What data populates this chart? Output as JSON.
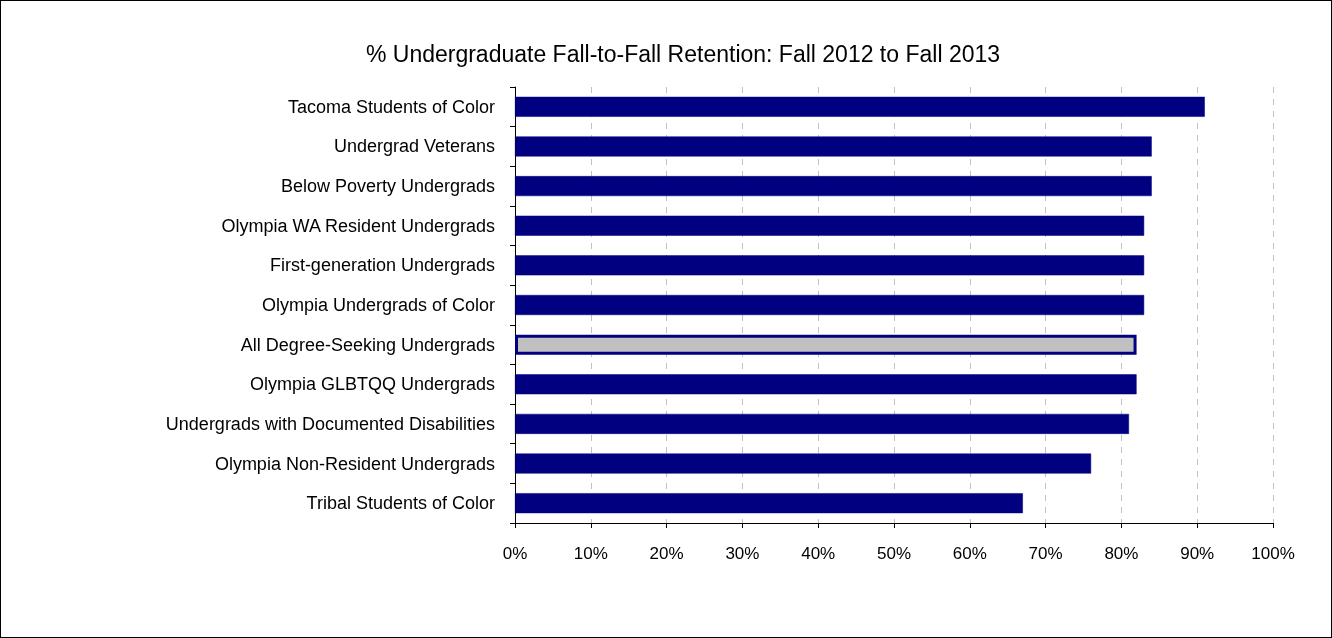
{
  "chart_data": {
    "type": "bar",
    "orientation": "horizontal",
    "title": "% Undergraduate Fall-to-Fall Retention: Fall 2012 to Fall 2013",
    "categories": [
      "Tacoma Students of Color",
      "Undergrad Veterans",
      "Below Poverty Undergrads",
      "Olympia WA Resident Undergrads",
      "First-generation Undergrads",
      "Olympia Undergrads of Color",
      "All Degree-Seeking Undergrads",
      "Olympia GLBTQQ Undergrads",
      "Undergrads with Documented Disabilities",
      "Olympia Non-Resident Undergrads",
      "Tribal Students of Color"
    ],
    "values": [
      91,
      84,
      84,
      83,
      83,
      83,
      82,
      82,
      81,
      76,
      67
    ],
    "colors": [
      "#000080",
      "#000080",
      "#000080",
      "#000080",
      "#000080",
      "#000080",
      "#c0c0c0",
      "#000080",
      "#000080",
      "#000080",
      "#000080"
    ],
    "xlim": [
      0,
      100
    ],
    "xticks": [
      {
        "value": 0,
        "label": "0%"
      },
      {
        "value": 10,
        "label": "10%"
      },
      {
        "value": 20,
        "label": "20%"
      },
      {
        "value": 30,
        "label": "30%"
      },
      {
        "value": 40,
        "label": "40%"
      },
      {
        "value": 50,
        "label": "50%"
      },
      {
        "value": 60,
        "label": "60%"
      },
      {
        "value": 70,
        "label": "70%"
      },
      {
        "value": 80,
        "label": "80%"
      },
      {
        "value": 90,
        "label": "90%"
      },
      {
        "value": 100,
        "label": "100%"
      }
    ],
    "grid": "x"
  }
}
